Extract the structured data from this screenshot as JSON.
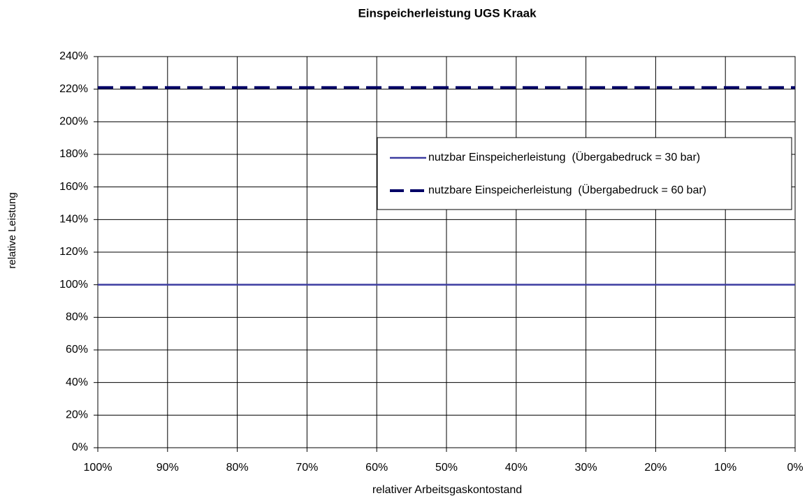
{
  "chart_data": {
    "type": "line",
    "title": "Einspeicherleistung UGS Kraak",
    "xlabel": "relativer Arbeitsgaskontostand",
    "ylabel": "relative Leistung",
    "x": [
      100,
      90,
      80,
      70,
      60,
      50,
      40,
      30,
      20,
      10,
      0
    ],
    "series": [
      {
        "name": "nutzbar Einspeicherleistung  (Übergabedruck = 30 bar)",
        "color": "#3c3ca0",
        "dashed": false,
        "values": [
          100,
          100,
          100,
          100,
          100,
          100,
          100,
          100,
          100,
          100,
          100
        ]
      },
      {
        "name": "nutzbare Einspeicherleistung  (Übergabedruck = 60 bar)",
        "color": "#000066",
        "dashed": true,
        "values": [
          221,
          221,
          221,
          221,
          221,
          221,
          221,
          221,
          221,
          221,
          221
        ]
      }
    ],
    "xlim": [
      100,
      0
    ],
    "xticks": [
      {
        "value": 100,
        "label": "100%"
      },
      {
        "value": 90,
        "label": "90%"
      },
      {
        "value": 80,
        "label": "80%"
      },
      {
        "value": 70,
        "label": "70%"
      },
      {
        "value": 60,
        "label": "60%"
      },
      {
        "value": 50,
        "label": "50%"
      },
      {
        "value": 40,
        "label": "40%"
      },
      {
        "value": 30,
        "label": "30%"
      },
      {
        "value": 20,
        "label": "20%"
      },
      {
        "value": 10,
        "label": "10%"
      },
      {
        "value": 0,
        "label": "0%"
      }
    ],
    "ylim": [
      0,
      240
    ],
    "yticks": [
      {
        "value": 0,
        "label": "0%"
      },
      {
        "value": 20,
        "label": "20%"
      },
      {
        "value": 40,
        "label": "40%"
      },
      {
        "value": 60,
        "label": "60%"
      },
      {
        "value": 80,
        "label": "80%"
      },
      {
        "value": 100,
        "label": "100%"
      },
      {
        "value": 120,
        "label": "120%"
      },
      {
        "value": 140,
        "label": "140%"
      },
      {
        "value": 160,
        "label": "160%"
      },
      {
        "value": 180,
        "label": "180%"
      },
      {
        "value": 200,
        "label": "200%"
      },
      {
        "value": 220,
        "label": "220%"
      },
      {
        "value": 240,
        "label": "240%"
      }
    ],
    "grid": true
  }
}
